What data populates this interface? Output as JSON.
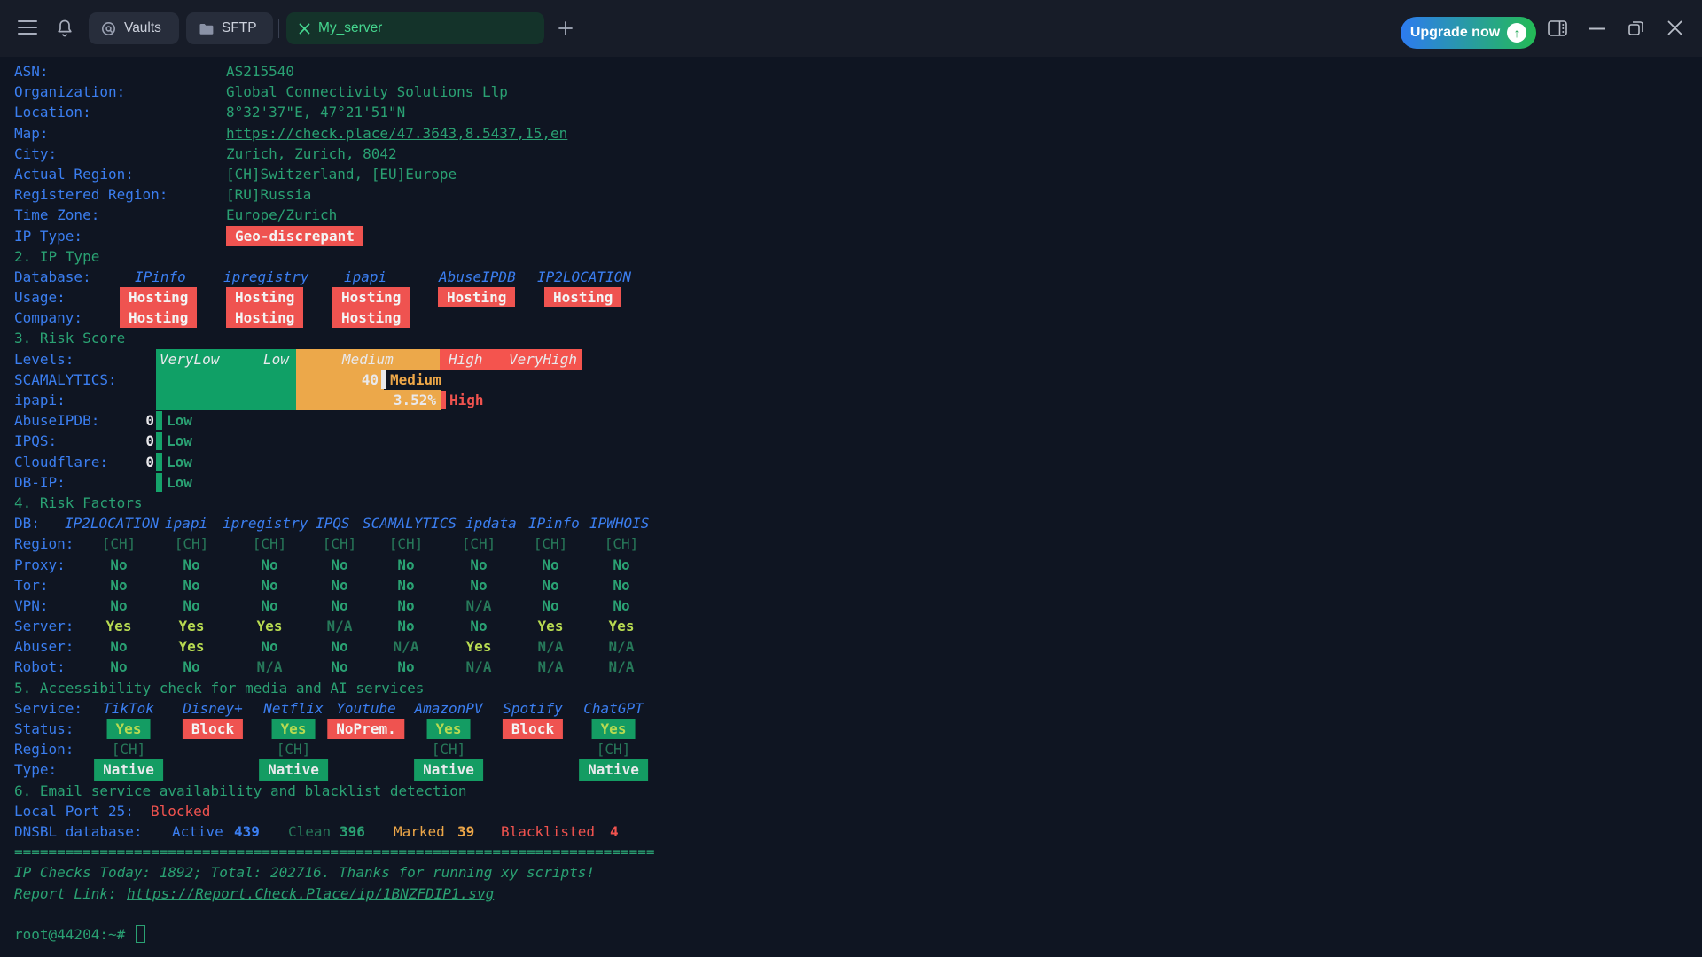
{
  "window": {
    "tabs": [
      {
        "label": "Vaults",
        "icon": "vault-icon"
      },
      {
        "label": "SFTP",
        "icon": "folder-icon"
      }
    ],
    "active_tab": {
      "label": "My_server",
      "close_icon": "close-icon"
    },
    "upgrade": {
      "label": "Upgrade now"
    },
    "colors": {
      "tab_active_green": "#45d68f",
      "upgrade_gradient_from": "#2d7bf0",
      "upgrade_gradient_to": "#24bb55"
    }
  },
  "terminal": {
    "colors": {
      "label_blue": "#3b7ef0",
      "value_green": "#2aa173",
      "dim_green": "#27795a",
      "lime": "#b7da51",
      "red": "#f0534f",
      "orange": "#eca648",
      "bar_green": "#10a066",
      "bar_orange": "#eca84a",
      "bar_red": "#f4544e",
      "badge_red": "#ef5350",
      "badge_green": "#149c63"
    },
    "info": [
      {
        "label": "ASN:",
        "value": "AS215540"
      },
      {
        "label": "Organization:",
        "value": "Global Connectivity Solutions Llp"
      },
      {
        "label": "Location:",
        "value": "8°32'37\"E, 47°21'51\"N"
      },
      {
        "label": "Map:",
        "value": "https://check.place/47.3643,8.5437,15,en"
      },
      {
        "label": "City:",
        "value": "Zurich, Zurich, 8042"
      },
      {
        "label": "Actual Region:",
        "value": "[CH]Switzerland, [EU]Europe"
      },
      {
        "label": "Registered Region:",
        "value": "[RU]Russia"
      },
      {
        "label": "Time Zone:",
        "value": "Europe/Zurich"
      }
    ],
    "ip_type_row": {
      "label": "IP Type:",
      "badge": "Geo-discrepant"
    },
    "ip_type": {
      "header": "2. IP Type",
      "db_label": "Database:",
      "columns": [
        "IPinfo",
        "ipregistry",
        "ipapi",
        "AbuseIPDB",
        "IP2LOCATION"
      ],
      "usage_label": "Usage:",
      "usage": [
        "Hosting",
        "Hosting",
        "Hosting",
        "Hosting",
        "Hosting"
      ],
      "company_label": "Company:",
      "company": [
        "Hosting",
        "Hosting",
        "Hosting",
        "",
        ""
      ]
    },
    "risk_score": {
      "header": "3. Risk Score",
      "levels_label": "Levels:",
      "level_names": [
        "VeryLow",
        "Low",
        "Medium",
        "High",
        "VeryHigh"
      ],
      "scores": [
        {
          "label": "SCAMALYTICS:",
          "value": "40",
          "level": "Medium"
        },
        {
          "label": "ipapi:",
          "value": "3.52%",
          "level": "High"
        },
        {
          "label": "AbuseIPDB:",
          "value": "0",
          "level": "Low"
        },
        {
          "label": "IPQS:",
          "value": "0",
          "level": "Low"
        },
        {
          "label": "Cloudflare:",
          "value": "0",
          "level": "Low"
        },
        {
          "label": "DB-IP:",
          "value": "",
          "level": "Low"
        }
      ]
    },
    "risk_factors": {
      "header": "4. Risk Factors",
      "db_label": "DB:",
      "columns": [
        "IP2LOCATION",
        "ipapi",
        "ipregistry",
        "IPQS",
        "SCAMALYTICS",
        "ipdata",
        "IPinfo",
        "IPWHOIS"
      ],
      "rows": [
        {
          "label": "Region:",
          "values": [
            "[CH]",
            "[CH]",
            "[CH]",
            "[CH]",
            "[CH]",
            "[CH]",
            "[CH]",
            "[CH]"
          ]
        },
        {
          "label": "Proxy:",
          "values": [
            "No",
            "No",
            "No",
            "No",
            "No",
            "No",
            "No",
            "No"
          ]
        },
        {
          "label": "Tor:",
          "values": [
            "No",
            "No",
            "No",
            "No",
            "No",
            "No",
            "No",
            "No"
          ]
        },
        {
          "label": "VPN:",
          "values": [
            "No",
            "No",
            "No",
            "No",
            "No",
            "N/A",
            "No",
            "No"
          ]
        },
        {
          "label": "Server:",
          "values": [
            "Yes",
            "Yes",
            "Yes",
            "N/A",
            "No",
            "No",
            "Yes",
            "Yes"
          ]
        },
        {
          "label": "Abuser:",
          "values": [
            "No",
            "Yes",
            "No",
            "No",
            "N/A",
            "Yes",
            "N/A",
            "N/A"
          ]
        },
        {
          "label": "Robot:",
          "values": [
            "No",
            "No",
            "N/A",
            "No",
            "No",
            "N/A",
            "N/A",
            "N/A"
          ]
        }
      ]
    },
    "media": {
      "header": "5. Accessibility check for media and AI services",
      "service_label": "Service:",
      "columns": [
        "TikTok",
        "Disney+",
        "Netflix",
        "Youtube",
        "AmazonPV",
        "Spotify",
        "ChatGPT"
      ],
      "status_label": "Status:",
      "status": [
        "Yes",
        "Block",
        "Yes",
        "NoPrem.",
        "Yes",
        "Block",
        "Yes"
      ],
      "region_label": "Region:",
      "regions": [
        "[CH]",
        "",
        "[CH]",
        "",
        "[CH]",
        "",
        "[CH]"
      ],
      "type_label": "Type:",
      "types": [
        "Native",
        "",
        "Native",
        "",
        "Native",
        "",
        "Native"
      ]
    },
    "email": {
      "header": "6. Email service availability and blacklist detection",
      "port_label": "Local Port 25:",
      "port_status": "Blocked",
      "dnsbl_label": "DNSBL database:",
      "stats": [
        {
          "name": "Active",
          "value": "439"
        },
        {
          "name": "Clean",
          "value": "396"
        },
        {
          "name": "Marked",
          "value": "39"
        },
        {
          "name": "Blacklisted",
          "value": "4"
        }
      ]
    },
    "footer": {
      "separator": "===========================================================================",
      "checks_line": "IP Checks Today: 1892; Total: 202716. Thanks for running xy scripts!",
      "report_label": "Report Link: ",
      "report_url": "https://Report.Check.Place/ip/1BNZFDIP1.svg",
      "prompt": "root@44204:~#"
    }
  }
}
